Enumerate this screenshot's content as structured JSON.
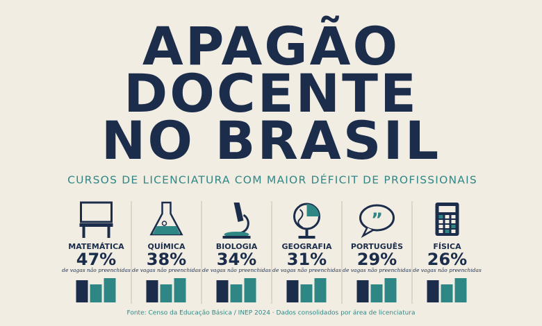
{
  "header": {
    "title": [
      "APAGÃO",
      "DOCENTE",
      "NO BRASIL"
    ],
    "subtitle": "CURSOS DE LICENCIATURA COM MAIOR DÉFICIT DE PROFISSIONAIS"
  },
  "items": [
    {
      "label": "MATEMÁTICA",
      "value": "47%",
      "caption": "de vagas não preenchidas"
    },
    {
      "label": "QUÍMICA",
      "value": "38%",
      "caption": "de vagas não preenchidas"
    },
    {
      "label": "BIOLOGIA",
      "value": "34%",
      "caption": "de vagas não preenchidas"
    },
    {
      "label": "GEOGRAFIA",
      "value": "31%",
      "caption": "de vagas não preenchidas"
    },
    {
      "label": "PORTUGUÊS",
      "value": "29%",
      "caption": "de vagas não preenchidas"
    },
    {
      "label": "FÍSICA",
      "value": "26%",
      "caption": "de vagas não preenchidas"
    }
  ],
  "footer": {
    "source": "Fonte: Censo da Educação Básica / INEP 2024 · Dados consolidados por área de licenciatura"
  }
}
